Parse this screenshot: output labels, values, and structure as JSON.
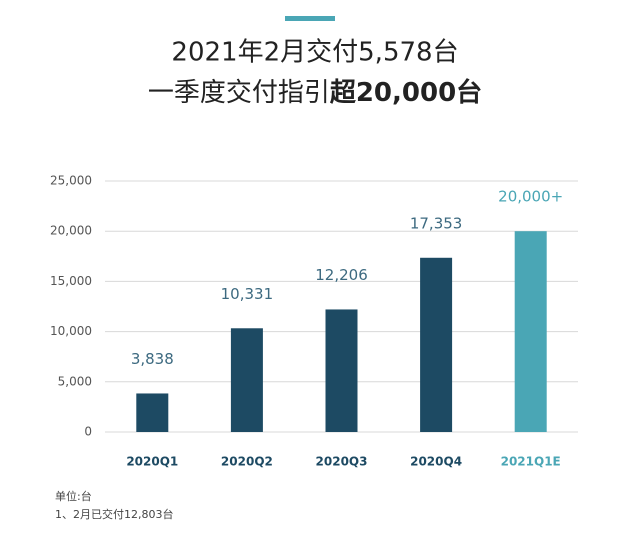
{
  "chart_data": {
    "type": "bar",
    "title": "2021年2月交付5,578台",
    "subtitle": [
      "一季度交付指引",
      "超20,000台"
    ],
    "categories": [
      "2020Q1",
      "2020Q2",
      "2020Q3",
      "2020Q4",
      "2021Q1E"
    ],
    "values": [
      3838,
      10331,
      12206,
      17353,
      20000
    ],
    "value_labels": [
      "3,838",
      "10,331",
      "12,206",
      "17,353",
      "20,000+"
    ],
    "colors": [
      "#1d4a63",
      "#1d4a63",
      "#1d4a63",
      "#1d4a63",
      "#4aa6b5"
    ],
    "ylim": [
      0,
      25000
    ],
    "yticks": [
      0,
      {
        "value": 5000,
        "label": "5,000"
      },
      {
        "value": 10000,
        "label": "10,000"
      },
      {
        "value": 15000,
        "label": "15,000"
      },
      {
        "value": 20000,
        "label": "20,000"
      },
      {
        "value": 25000,
        "label": "25,000"
      }
    ],
    "grid": true,
    "notes": [
      "单位:台",
      "1、2月已交付12,803台"
    ]
  }
}
